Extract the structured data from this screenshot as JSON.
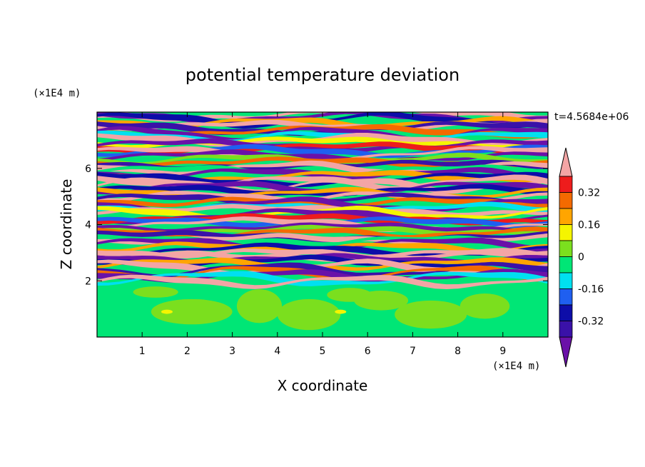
{
  "chart_data": {
    "type": "heatmap",
    "title": "potential temperature deviation",
    "xlabel": "X coordinate",
    "ylabel": "Z coordinate",
    "x_unit": "(×1E4 m)",
    "y_unit": "(×1E4 m)",
    "time_label": "t=4.5684e+06",
    "xlim": [
      0,
      10
    ],
    "ylim": [
      0,
      8
    ],
    "xticks": [
      "1",
      "2",
      "3",
      "4",
      "5",
      "6",
      "7",
      "8",
      "9"
    ],
    "yticks": [
      "2",
      "4",
      "6"
    ],
    "colorbar": {
      "tick_labels": [
        "0.32",
        "0.16",
        "0",
        "-0.16",
        "-0.32"
      ],
      "levels": [
        -0.4,
        -0.32,
        -0.24,
        -0.16,
        -0.08,
        0,
        0.08,
        0.16,
        0.24,
        0.32,
        0.4
      ],
      "colors": [
        "#6a11a8",
        "#3a11a8",
        "#0d0da8",
        "#1f5ff0",
        "#00e0f0",
        "#00e676",
        "#7bdf1e",
        "#f5f500",
        "#ffa500",
        "#f46a00",
        "#ee1c1c",
        "#f3a5a5"
      ]
    }
  }
}
